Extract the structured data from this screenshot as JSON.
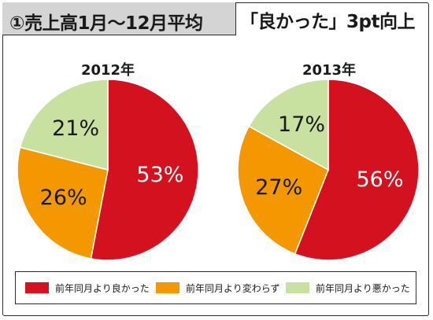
{
  "header": {
    "title": "①売上高1月〜12月平均",
    "subtitle": "「良かった」3pt向上"
  },
  "chart_data": {
    "type": "pie",
    "series_names": [
      "前年同月より良かった",
      "前年同月より変わらず",
      "前年同月より悪かった"
    ],
    "colors": [
      "#d4111e",
      "#f39800",
      "#c8e0a0"
    ],
    "legend_position": "bottom",
    "charts": [
      {
        "year_label": "2012年",
        "values": [
          53,
          26,
          21
        ],
        "labels": [
          "53%",
          "26%",
          "21%"
        ]
      },
      {
        "year_label": "2013年",
        "values": [
          56,
          27,
          17
        ],
        "labels": [
          "56%",
          "27%",
          "17%"
        ]
      }
    ]
  }
}
